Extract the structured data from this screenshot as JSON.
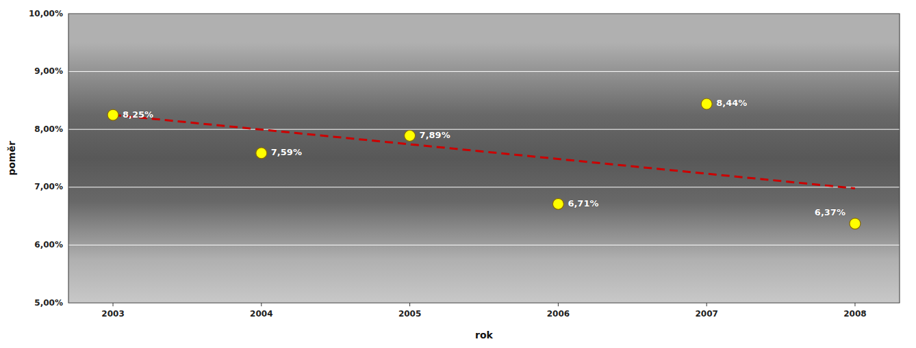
{
  "chart_data": {
    "type": "scatter",
    "x": [
      2003,
      2004,
      2005,
      2006,
      2007,
      2008
    ],
    "series": [
      {
        "type": "scatter",
        "color": "#FFFF00",
        "marker": "circle",
        "data_labels": true,
        "values": [
          0.0825,
          0.0759,
          0.0789,
          0.0671,
          0.0844,
          0.0637
        ],
        "value_labels": [
          "8,25%",
          "7,59%",
          "7,89%",
          "6,71%",
          "8,44%",
          "6,37%"
        ]
      },
      {
        "type": "line",
        "color": "#CC0000",
        "line_style": "dashed",
        "x": [
          2003,
          2008
        ],
        "values": [
          0.0825,
          0.0698
        ]
      }
    ],
    "x_label": "rok",
    "y_label": "poměr",
    "xlim": [
      2002.7,
      2008.3
    ],
    "ylim": [
      0.05,
      0.1
    ],
    "xticks": [
      2003,
      2004,
      2005,
      2006,
      2007,
      2008
    ],
    "yticks": [
      {
        "value": 0.05,
        "label": "5,00%"
      },
      {
        "value": 0.06,
        "label": "6,00%"
      },
      {
        "value": 0.07,
        "label": "7,00%"
      },
      {
        "value": 0.08,
        "label": "8,00%"
      },
      {
        "value": 0.09,
        "label": "9,00%"
      },
      {
        "value": 0.1,
        "label": "10,00%"
      }
    ],
    "grid": true
  }
}
